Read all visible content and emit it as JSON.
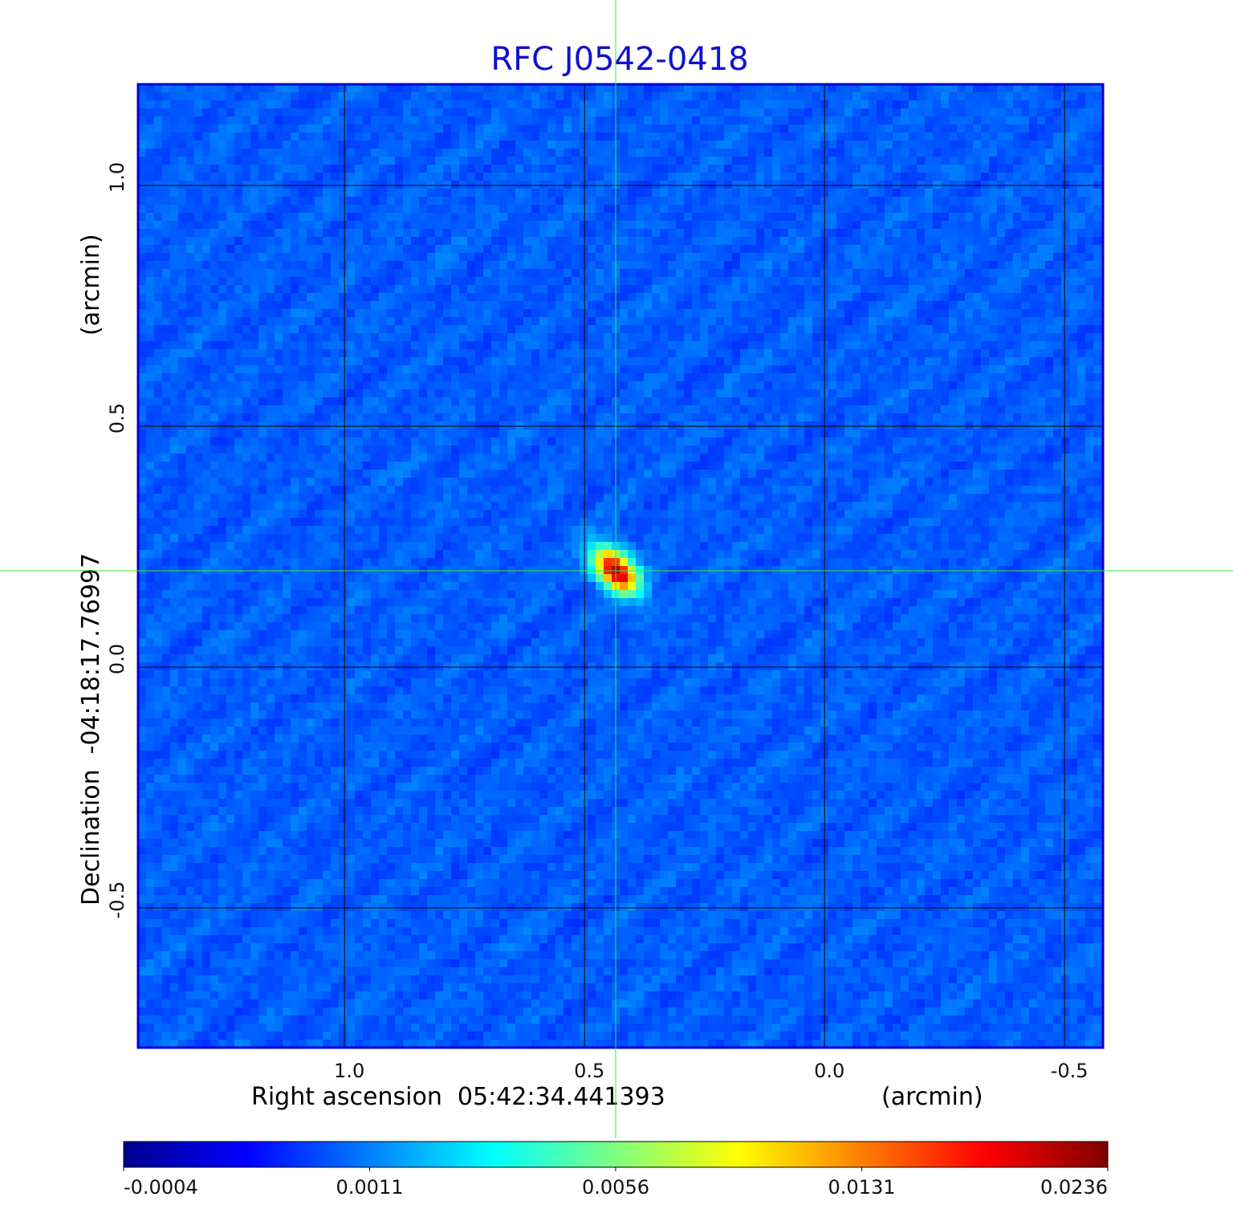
{
  "chart_data": {
    "type": "heatmap",
    "title": "RFC J0542-0418",
    "xlabel": "Right ascension  05:42:34.441393",
    "xunit": "(arcmin)",
    "ylabel": "Declination  -04:18:17.76997",
    "yunit": "(arcmin)",
    "xlim": [
      1.43,
      -0.58
    ],
    "ylim": [
      -0.79,
      1.21
    ],
    "x_ticks": [
      1.0,
      0.5,
      0.0,
      -0.5
    ],
    "x_tick_labels": [
      "1.0",
      "0.5",
      "0.0",
      "-0.5"
    ],
    "y_ticks": [
      1.0,
      0.5,
      0.0,
      -0.5
    ],
    "y_tick_labels": [
      "1.0",
      "0.5",
      "0.0",
      "-0.5"
    ],
    "grid": true,
    "crosshair": {
      "x": 0.435,
      "y": 0.2
    },
    "source_peak": {
      "x": 0.435,
      "y": 0.2,
      "value": 0.0236
    },
    "colorbar": {
      "colormap": "jet",
      "ticks": [
        "-0.0004",
        "0.0011",
        "0.0056",
        "0.0131",
        "0.0236"
      ]
    },
    "colors": {
      "title": "#1010d0",
      "grid": "#000000",
      "crosshair": "#33ee33",
      "frame": "#0000cc"
    }
  }
}
